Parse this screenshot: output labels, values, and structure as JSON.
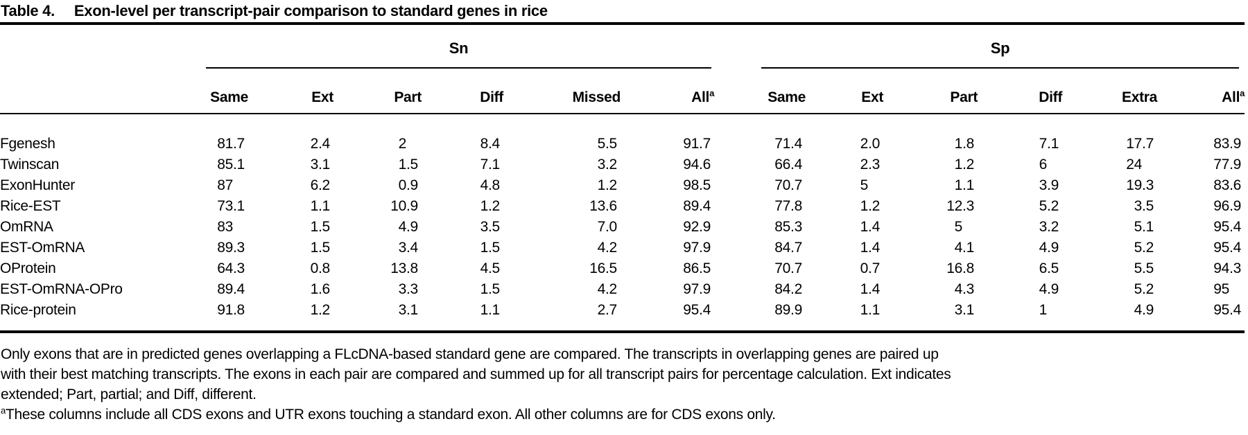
{
  "title": {
    "label": "Table 4.",
    "text": "Exon-level per transcript-pair comparison to standard genes in rice"
  },
  "table": {
    "groups": [
      {
        "label": "Sn"
      },
      {
        "label": "Sp"
      }
    ],
    "sn_columns": [
      {
        "label": "Same"
      },
      {
        "label": "Ext"
      },
      {
        "label": "Part"
      },
      {
        "label": "Diff"
      },
      {
        "label": "Missed"
      },
      {
        "label": "All",
        "sup": "a"
      }
    ],
    "sp_columns": [
      {
        "label": "Same"
      },
      {
        "label": "Ext"
      },
      {
        "label": "Part"
      },
      {
        "label": "Diff"
      },
      {
        "label": "Extra"
      },
      {
        "label": "All",
        "sup": "a"
      }
    ],
    "rows": [
      {
        "label": "Fgenesh",
        "sn": [
          "81.7",
          "2.4",
          "2",
          "8.4",
          "5.5",
          "91.7"
        ],
        "sp": [
          "71.4",
          "2.0",
          "1.8",
          "7.1",
          "17.7",
          "83.9"
        ]
      },
      {
        "label": "Twinscan",
        "sn": [
          "85.1",
          "3.1",
          "1.5",
          "7.1",
          "3.2",
          "94.6"
        ],
        "sp": [
          "66.4",
          "2.3",
          "1.2",
          "6",
          "24",
          "77.9"
        ]
      },
      {
        "label": "ExonHunter",
        "sn": [
          "87",
          "6.2",
          "0.9",
          "4.8",
          "1.2",
          "98.5"
        ],
        "sp": [
          "70.7",
          "5",
          "1.1",
          "3.9",
          "19.3",
          "83.6"
        ]
      },
      {
        "label": "Rice-EST",
        "sn": [
          "73.1",
          "1.1",
          "10.9",
          "1.2",
          "13.6",
          "89.4"
        ],
        "sp": [
          "77.8",
          "1.2",
          "12.3",
          "5.2",
          "3.5",
          "96.9"
        ]
      },
      {
        "label": "OmRNA",
        "sn": [
          "83",
          "1.5",
          "4.9",
          "3.5",
          "7.0",
          "92.9"
        ],
        "sp": [
          "85.3",
          "1.4",
          "5",
          "3.2",
          "5.1",
          "95.4"
        ]
      },
      {
        "label": "EST-OmRNA",
        "sn": [
          "89.3",
          "1.5",
          "3.4",
          "1.5",
          "4.2",
          "97.9"
        ],
        "sp": [
          "84.7",
          "1.4",
          "4.1",
          "4.9",
          "5.2",
          "95.4"
        ]
      },
      {
        "label": "OProtein",
        "sn": [
          "64.3",
          "0.8",
          "13.8",
          "4.5",
          "16.5",
          "86.5"
        ],
        "sp": [
          "70.7",
          "0.7",
          "16.8",
          "6.5",
          "5.5",
          "94.3"
        ]
      },
      {
        "label": "EST-OmRNA-OPro",
        "sn": [
          "89.4",
          "1.6",
          "3.3",
          "1.5",
          "4.2",
          "97.9"
        ],
        "sp": [
          "84.2",
          "1.4",
          "4.3",
          "4.9",
          "5.2",
          "95"
        ]
      },
      {
        "label": "Rice-protein",
        "sn": [
          "91.8",
          "1.2",
          "3.1",
          "1.1",
          "2.7",
          "95.4"
        ],
        "sp": [
          "89.9",
          "1.1",
          "3.1",
          "1",
          "4.9",
          "95.4"
        ]
      }
    ]
  },
  "footer": {
    "note_lines": [
      "Only exons that are in predicted genes overlapping a FLcDNA-based standard gene are compared. The transcripts in overlapping genes are paired up",
      "with their best matching transcripts. The exons in each pair are compared and summed up for all transcript pairs for percentage calculation. Ext indicates",
      "extended; Part, partial; and Diff, different."
    ],
    "footnote_marker": "a",
    "footnote": "These columns include all CDS exons and UTR exons touching a standard exon. All other columns are for CDS exons only."
  }
}
